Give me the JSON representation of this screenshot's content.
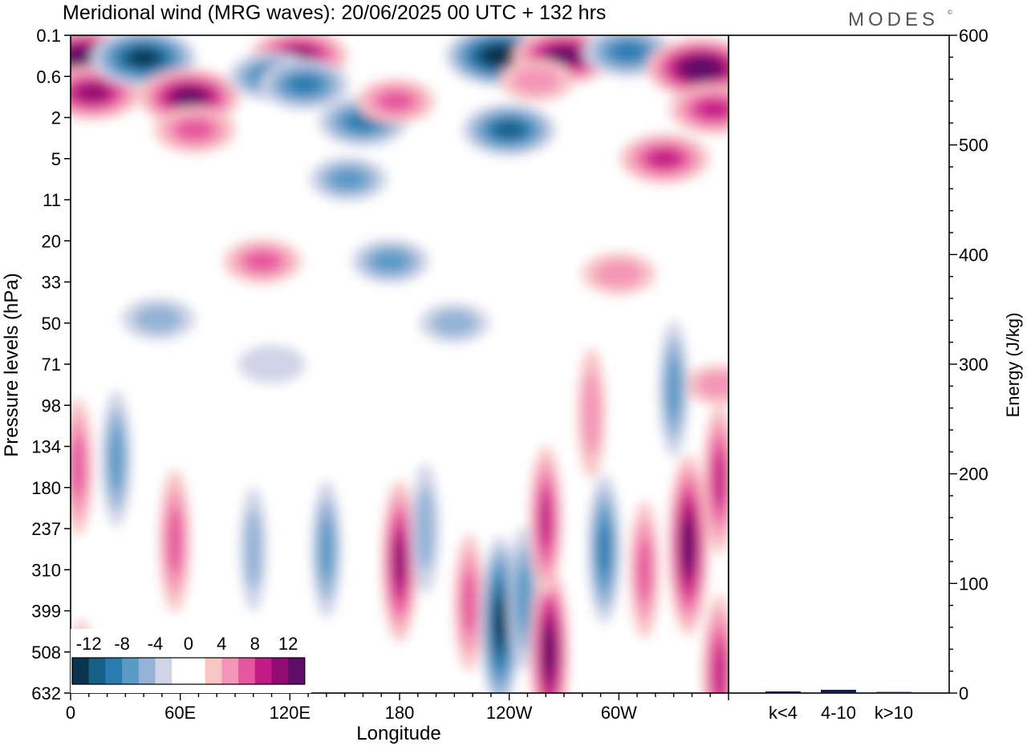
{
  "title": "Meridional wind (MRG waves):  20/06/2025  00 UTC  + 132 hrs",
  "logo_text": "MODES",
  "logo_mark": "©",
  "colors": {
    "neg": [
      "#0b3350",
      "#165f86",
      "#2a7cb0",
      "#5a9ac6",
      "#93b2d6",
      "#cfd4e7"
    ],
    "zero": "#ffffff",
    "pos": [
      "#f8c5c5",
      "#f495b8",
      "#e6569e",
      "#c41a86",
      "#920b72",
      "#5e0d68"
    ]
  },
  "chart_data": [
    {
      "type": "heatmap",
      "xlabel": "Longitude",
      "ylabel": "Pressure levels (hPa)",
      "x_ticks": [
        "0",
        "60E",
        "120E",
        "180",
        "120W",
        "60W"
      ],
      "x_tick_values": [
        0,
        60,
        120,
        180,
        240,
        300
      ],
      "x_range": [
        0,
        360
      ],
      "y_ticks": [
        "0.1",
        "0.6",
        "2",
        "5",
        "11",
        "20",
        "33",
        "50",
        "71",
        "98",
        "134",
        "180",
        "237",
        "310",
        "399",
        "508",
        "632"
      ],
      "colorbar": {
        "labels": [
          "-12",
          "-8",
          "-4",
          "0",
          "4",
          "8",
          "12"
        ],
        "levels": [
          -14,
          -12,
          -10,
          -8,
          -6,
          -4,
          -2,
          2,
          4,
          6,
          8,
          10,
          12,
          14
        ]
      },
      "features": [
        {
          "lon": 8,
          "level": 0.55,
          "value": 14
        },
        {
          "lon": 12,
          "level": 1.4,
          "value": 11
        },
        {
          "lon": 40,
          "level": 0.55,
          "value": -13
        },
        {
          "lon": 65,
          "level": 1.5,
          "value": 12
        },
        {
          "lon": 68,
          "level": 2.3,
          "value": 7
        },
        {
          "lon": 125,
          "level": 0.5,
          "value": 11
        },
        {
          "lon": 110,
          "level": 1.0,
          "value": -8
        },
        {
          "lon": 128,
          "level": 1.2,
          "value": -9
        },
        {
          "lon": 160,
          "level": 2.1,
          "value": -9
        },
        {
          "lon": 152,
          "level": 3.5,
          "value": -6
        },
        {
          "lon": 105,
          "level": 5.5,
          "value": 6
        },
        {
          "lon": 178,
          "level": 1.6,
          "value": 6
        },
        {
          "lon": 235,
          "level": 0.5,
          "value": -14
        },
        {
          "lon": 240,
          "level": 2.3,
          "value": -10
        },
        {
          "lon": 270,
          "level": 0.5,
          "value": 12
        },
        {
          "lon": 255,
          "level": 1.1,
          "value": 5
        },
        {
          "lon": 305,
          "level": 0.4,
          "value": -9
        },
        {
          "lon": 345,
          "level": 0.8,
          "value": 14
        },
        {
          "lon": 352,
          "level": 1.8,
          "value": 9
        },
        {
          "lon": 325,
          "level": 3.0,
          "value": 9
        },
        {
          "lon": 300,
          "level": 5.8,
          "value": 5
        },
        {
          "lon": 175,
          "level": 5.5,
          "value": -6
        },
        {
          "lon": 210,
          "level": 7.0,
          "value": -4
        },
        {
          "lon": 48,
          "level": 6.9,
          "value": -5
        },
        {
          "lon": 355,
          "level": 8.5,
          "value": 4
        },
        {
          "lon": 110,
          "level": 8.0,
          "value": -3
        },
        {
          "lon": 355,
          "level": 10.8,
          "value": 8
        },
        {
          "lon": 25,
          "level": 10.3,
          "value": -6
        },
        {
          "lon": 4,
          "level": 10.5,
          "value": 6
        },
        {
          "lon": 57,
          "level": 12.3,
          "value": 7
        },
        {
          "lon": 180,
          "level": 12.8,
          "value": 10
        },
        {
          "lon": 194,
          "level": 12.0,
          "value": -5
        },
        {
          "lon": 218,
          "level": 13.8,
          "value": 6
        },
        {
          "lon": 235,
          "level": 14.3,
          "value": -12
        },
        {
          "lon": 248,
          "level": 13.7,
          "value": -7
        },
        {
          "lon": 262,
          "level": 15.0,
          "value": 12
        },
        {
          "lon": 260,
          "level": 11.8,
          "value": 8
        },
        {
          "lon": 292,
          "level": 12.5,
          "value": -8
        },
        {
          "lon": 338,
          "level": 12.4,
          "value": 13
        },
        {
          "lon": 314,
          "level": 13.0,
          "value": 6
        },
        {
          "lon": 285,
          "level": 9.2,
          "value": 5
        },
        {
          "lon": 330,
          "level": 8.6,
          "value": -6
        },
        {
          "lon": 100,
          "level": 12.5,
          "value": -4
        },
        {
          "lon": 140,
          "level": 12.5,
          "value": -6
        },
        {
          "lon": 355,
          "level": 15.5,
          "value": 9
        },
        {
          "lon": 6,
          "level": 15.8,
          "value": 5
        }
      ]
    },
    {
      "type": "bar",
      "categories": [
        "k<4",
        "4-10",
        "k>10"
      ],
      "values": [
        1.5,
        3,
        1
      ],
      "ylabel": "Energy (J/kg)",
      "y_ticks": [
        "0",
        "100",
        "200",
        "300",
        "400",
        "500",
        "600"
      ],
      "ylim": [
        0,
        600
      ]
    }
  ]
}
